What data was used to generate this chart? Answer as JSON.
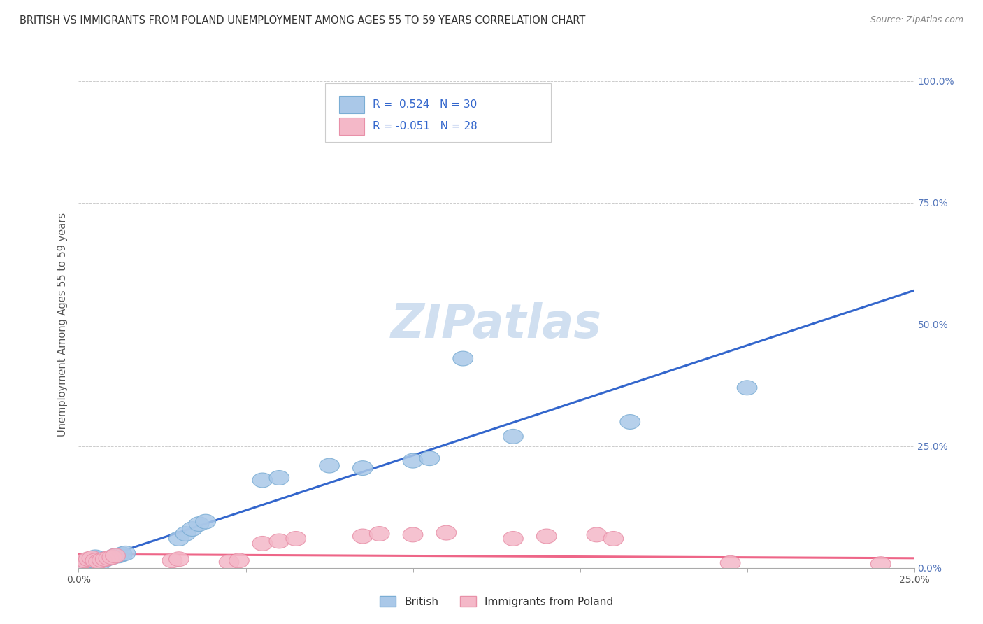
{
  "title": "BRITISH VS IMMIGRANTS FROM POLAND UNEMPLOYMENT AMONG AGES 55 TO 59 YEARS CORRELATION CHART",
  "source": "Source: ZipAtlas.com",
  "ylabel": "Unemployment Among Ages 55 to 59 years",
  "xlim": [
    0.0,
    0.25
  ],
  "ylim": [
    0.0,
    1.0
  ],
  "xticks": [
    0.0,
    0.05,
    0.1,
    0.15,
    0.2,
    0.25
  ],
  "yticks": [
    0.0,
    0.25,
    0.5,
    0.75,
    1.0
  ],
  "ytick_labels_right": [
    "0.0%",
    "25.0%",
    "50.0%",
    "75.0%",
    "100.0%"
  ],
  "xtick_labels": [
    "0.0%",
    "",
    "",
    "",
    "",
    "25.0%"
  ],
  "british_color": "#aac8e8",
  "british_edge": "#7aadd4",
  "poland_color": "#f4b8c8",
  "poland_edge": "#e890a8",
  "blue_line_color": "#3366cc",
  "pink_line_color": "#ee6688",
  "watermark_color": "#d0dff0",
  "background_color": "#ffffff",
  "grid_color": "#cccccc",
  "title_color": "#333333",
  "british_r": "0.524",
  "british_n": "30",
  "poland_r": "-0.051",
  "poland_n": "28",
  "british_x": [
    0.001,
    0.002,
    0.003,
    0.004,
    0.005,
    0.005,
    0.006,
    0.007,
    0.008,
    0.009,
    0.01,
    0.011,
    0.012,
    0.013,
    0.014,
    0.03,
    0.032,
    0.034,
    0.036,
    0.038,
    0.055,
    0.06,
    0.075,
    0.085,
    0.1,
    0.105,
    0.13,
    0.165,
    0.2,
    0.115
  ],
  "british_y": [
    0.01,
    0.012,
    0.015,
    0.018,
    0.02,
    0.022,
    0.015,
    0.012,
    0.018,
    0.02,
    0.022,
    0.025,
    0.025,
    0.028,
    0.03,
    0.06,
    0.07,
    0.08,
    0.09,
    0.095,
    0.18,
    0.185,
    0.21,
    0.205,
    0.22,
    0.225,
    0.27,
    0.3,
    0.37,
    0.43
  ],
  "poland_x": [
    0.001,
    0.002,
    0.003,
    0.004,
    0.005,
    0.006,
    0.007,
    0.008,
    0.009,
    0.01,
    0.011,
    0.028,
    0.03,
    0.045,
    0.048,
    0.055,
    0.06,
    0.065,
    0.085,
    0.09,
    0.1,
    0.11,
    0.13,
    0.14,
    0.155,
    0.16,
    0.195,
    0.24
  ],
  "poland_y": [
    0.012,
    0.015,
    0.018,
    0.02,
    0.015,
    0.013,
    0.016,
    0.018,
    0.02,
    0.022,
    0.025,
    0.015,
    0.018,
    0.012,
    0.015,
    0.05,
    0.055,
    0.06,
    0.065,
    0.07,
    0.068,
    0.072,
    0.06,
    0.065,
    0.068,
    0.06,
    0.01,
    0.008
  ],
  "british_line_x": [
    0.0,
    0.25
  ],
  "british_line_y": [
    0.005,
    0.57
  ],
  "poland_line_x": [
    0.0,
    0.25
  ],
  "poland_line_y": [
    0.028,
    0.02
  ]
}
